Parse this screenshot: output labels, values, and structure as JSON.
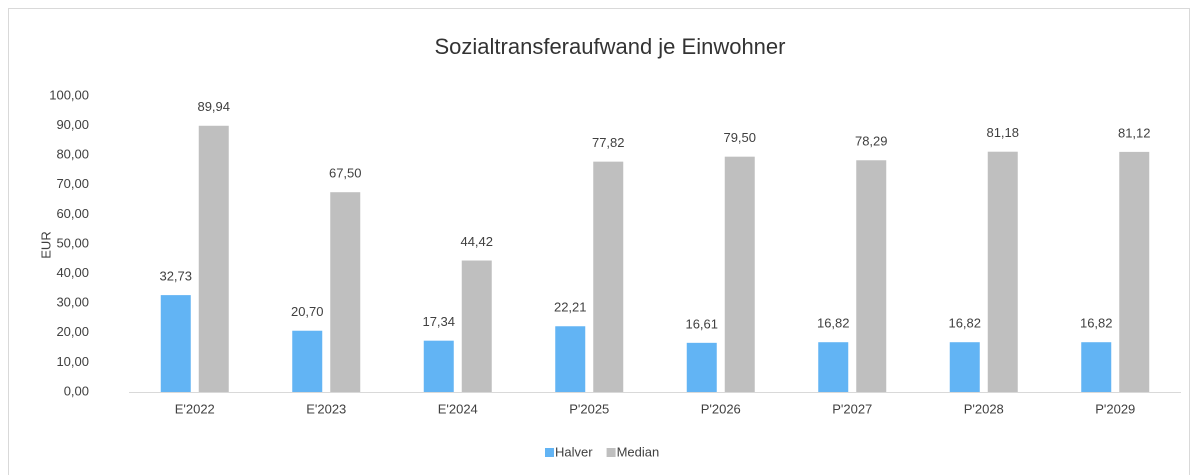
{
  "chart_data": {
    "type": "bar",
    "title": "Sozialtransferaufwand je Einwohner",
    "y_label": "EUR",
    "categories": [
      "E'2022",
      "E'2023",
      "E'2024",
      "P'2025",
      "P'2026",
      "P'2027",
      "P'2028",
      "P'2029"
    ],
    "series": [
      {
        "name": "Halver",
        "color": "#62b4f4",
        "values": [
          32.73,
          20.7,
          17.34,
          22.21,
          16.61,
          16.82,
          16.82,
          16.82
        ],
        "value_labels": [
          "32,73",
          "20,70",
          "17,34",
          "22,21",
          "16,61",
          "16,82",
          "16,82",
          "16,82"
        ]
      },
      {
        "name": "Median",
        "color": "#bfbfbf",
        "values": [
          89.94,
          67.5,
          44.42,
          77.82,
          79.5,
          78.29,
          81.18,
          81.12
        ],
        "value_labels": [
          "89,94",
          "67,50",
          "44,42",
          "77,82",
          "79,50",
          "78,29",
          "81,18",
          "81,12"
        ]
      }
    ],
    "ylim": [
      0,
      100
    ],
    "yticks": [
      {
        "value": 0,
        "label": "0,00"
      },
      {
        "value": 10,
        "label": "10,00"
      },
      {
        "value": 20,
        "label": "20,00"
      },
      {
        "value": 30,
        "label": "30,00"
      },
      {
        "value": 40,
        "label": "40,00"
      },
      {
        "value": 50,
        "label": "50,00"
      },
      {
        "value": 60,
        "label": "60,00"
      },
      {
        "value": 70,
        "label": "70,00"
      },
      {
        "value": 80,
        "label": "80,00"
      },
      {
        "value": 90,
        "label": "90,00"
      },
      {
        "value": 100,
        "label": "100,00"
      }
    ],
    "grid": false,
    "legend": "bottom"
  }
}
